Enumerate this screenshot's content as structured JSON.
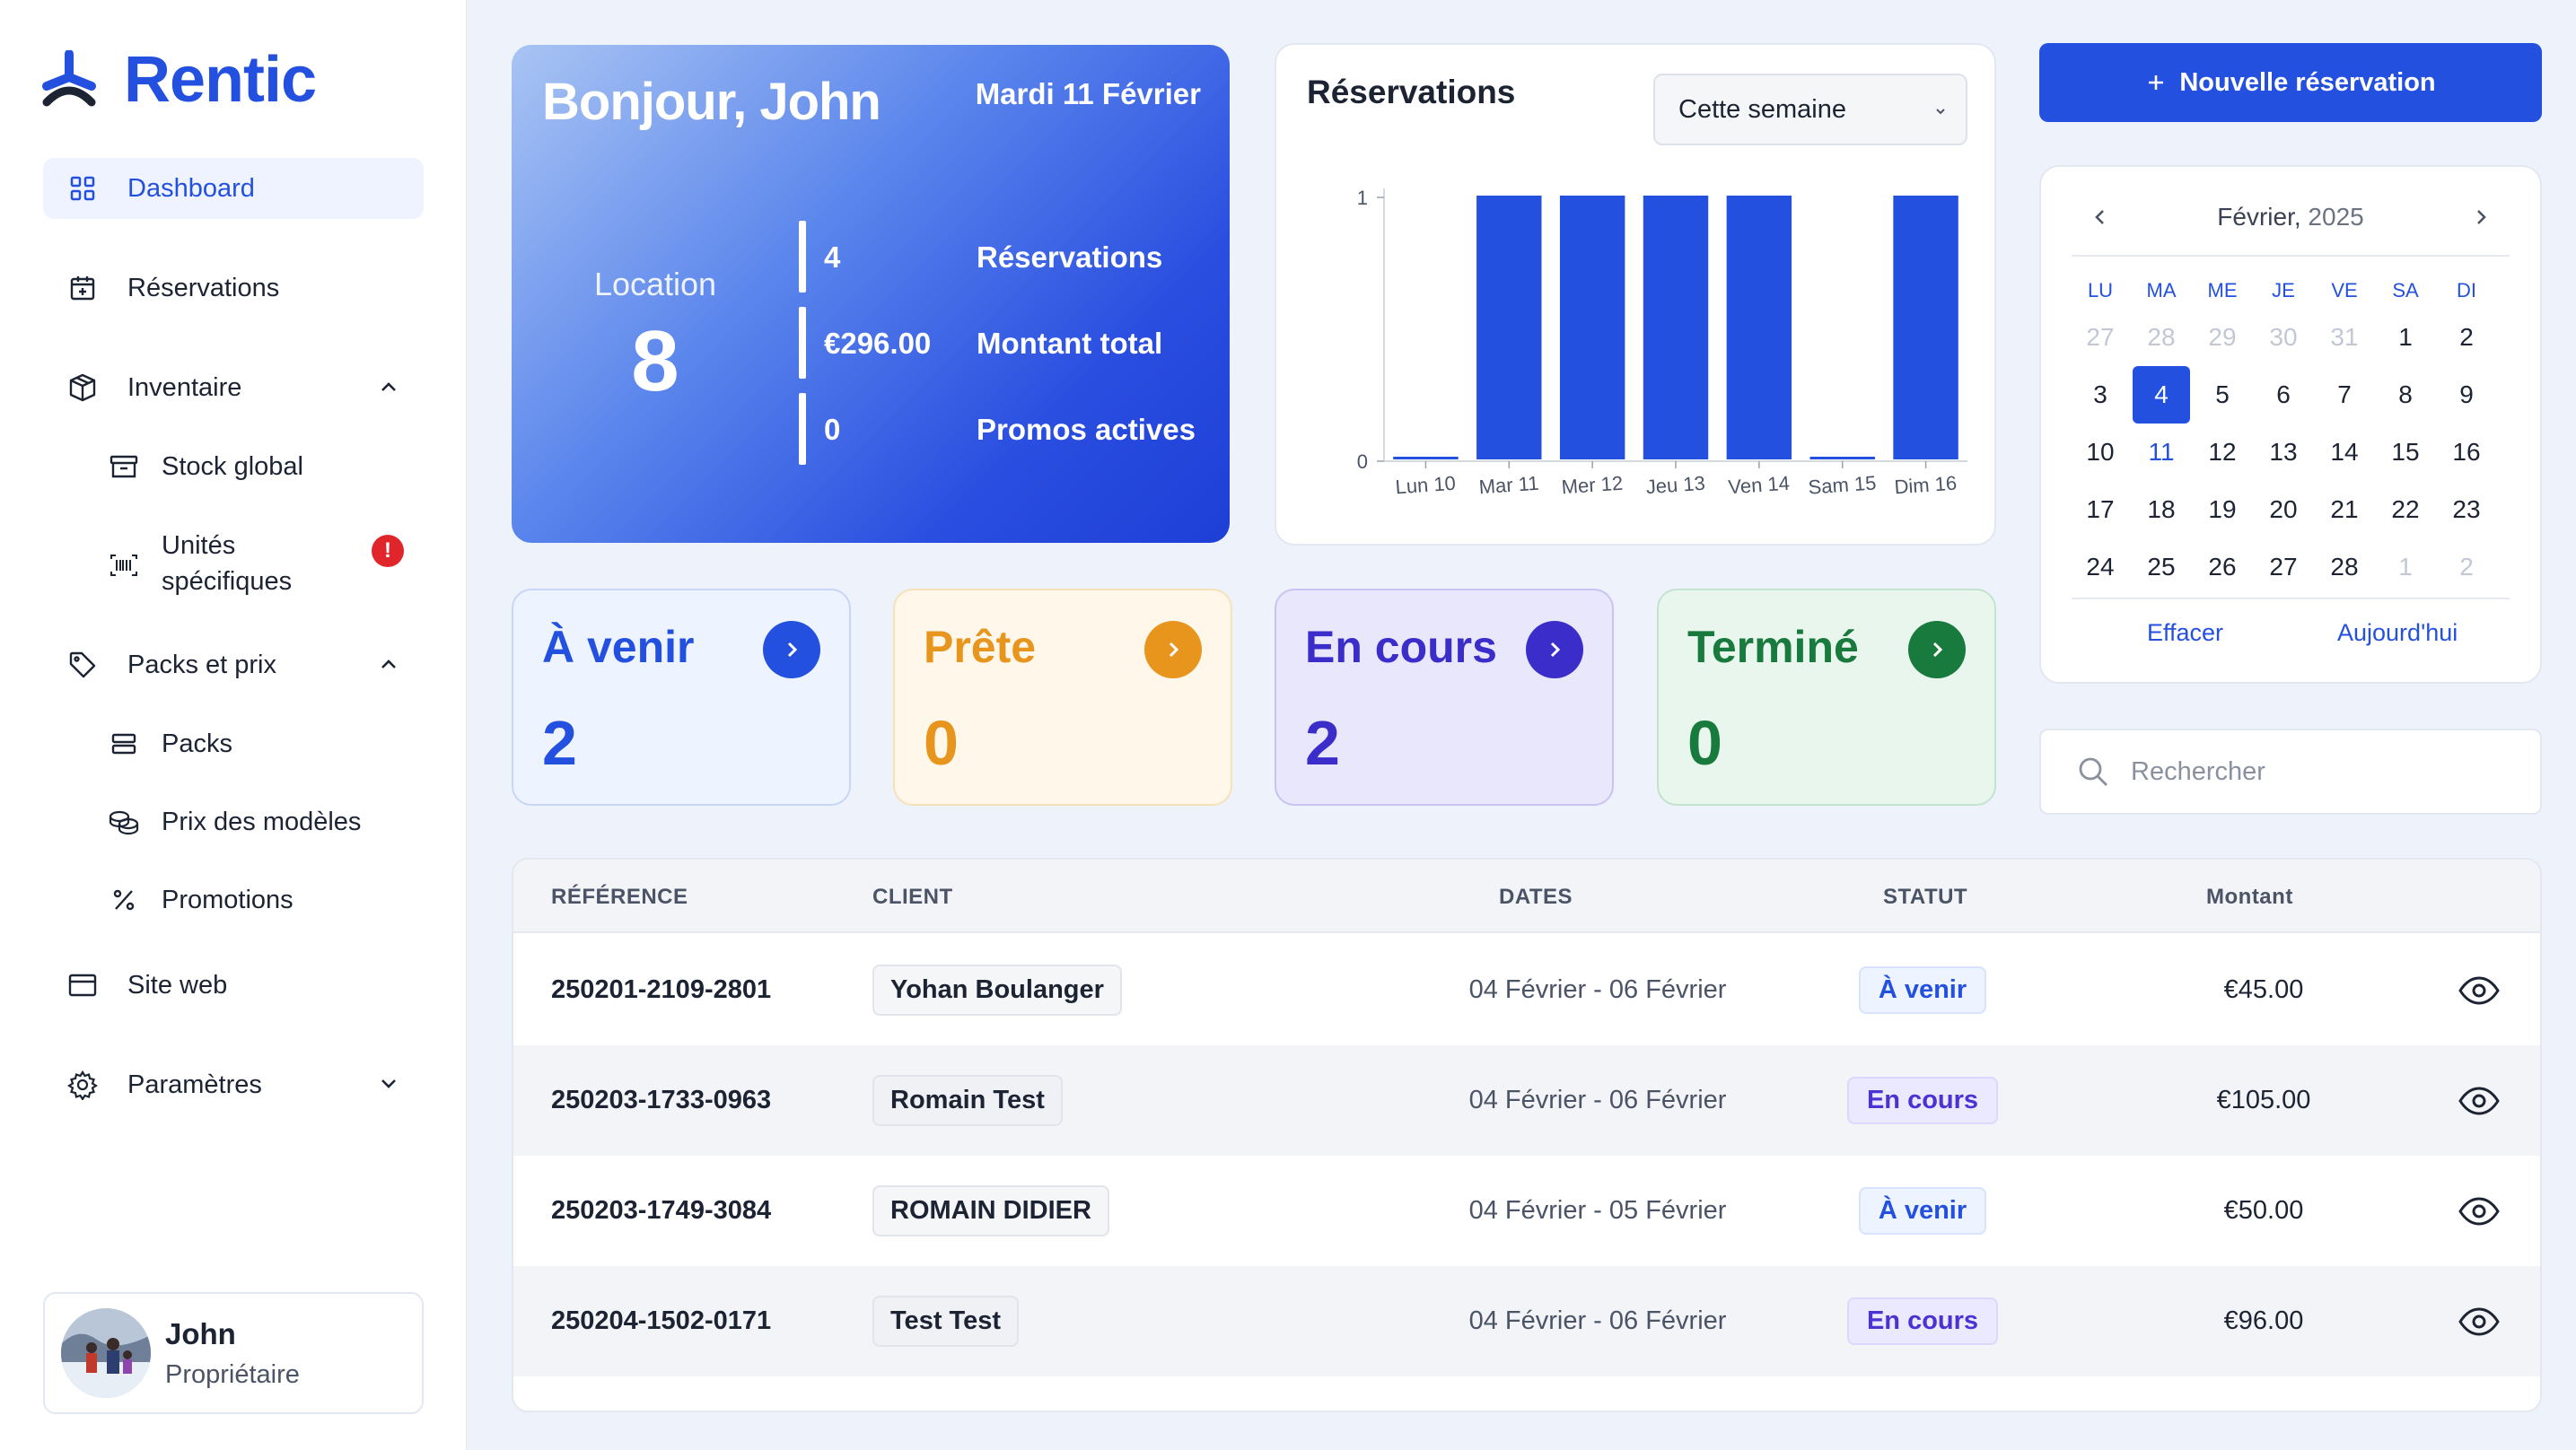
{
  "brand": {
    "name": "Rentic",
    "accent": "#2450e0"
  },
  "sidebar": {
    "items": [
      {
        "label": "Dashboard",
        "icon": "grid-icon",
        "active": true
      },
      {
        "label": "Réservations",
        "icon": "calendar-plus-icon"
      },
      {
        "label": "Inventaire",
        "icon": "box-icon",
        "expanded": true
      },
      {
        "label": "Stock global",
        "icon": "archive-icon"
      },
      {
        "label": "Unités spécifiques",
        "icon": "barcode-icon",
        "alert": "!"
      },
      {
        "label": "Packs et prix",
        "icon": "tag-icon",
        "expanded": true
      },
      {
        "label": "Packs",
        "icon": "stack-icon"
      },
      {
        "label": "Prix des modèles",
        "icon": "coins-icon"
      },
      {
        "label": "Promotions",
        "icon": "percent-icon"
      },
      {
        "label": "Site web",
        "icon": "browser-icon"
      },
      {
        "label": "Paramètres",
        "icon": "gear-icon",
        "expanded": false
      }
    ],
    "user": {
      "name": "John",
      "role": "Propriétaire"
    }
  },
  "hero": {
    "greeting": "Bonjour, John",
    "date": "Mardi 11 Février",
    "location_label": "Location",
    "location_value": "8",
    "rows": [
      {
        "value": "4",
        "label": "Réservations"
      },
      {
        "value": "€296.00",
        "label": "Montant total"
      },
      {
        "value": "0",
        "label": "Promos actives"
      }
    ]
  },
  "chart": {
    "title": "Réservations",
    "period": "Cette semaine"
  },
  "chart_data": {
    "type": "bar",
    "title": "Réservations",
    "categories": [
      "Lun 10",
      "Mar 11",
      "Mer 12",
      "Jeu 13",
      "Ven 14",
      "Sam 15",
      "Dim 16"
    ],
    "values": [
      0,
      1,
      1,
      1,
      1,
      0,
      1
    ],
    "ylim": [
      0,
      1
    ],
    "yticks": [
      "0",
      "1"
    ],
    "color": "#2450e0"
  },
  "actions": {
    "new_reservation": "Nouvelle réservation"
  },
  "calendar": {
    "month": "Février,",
    "year": "2025",
    "dow": [
      "LU",
      "MA",
      "ME",
      "JE",
      "VE",
      "SA",
      "DI"
    ],
    "days": [
      [
        "27",
        "28",
        "29",
        "30",
        "31",
        "1",
        "2"
      ],
      [
        "3",
        "4",
        "5",
        "6",
        "7",
        "8",
        "9"
      ],
      [
        "10",
        "11",
        "12",
        "13",
        "14",
        "15",
        "16"
      ],
      [
        "17",
        "18",
        "19",
        "20",
        "21",
        "22",
        "23"
      ],
      [
        "24",
        "25",
        "26",
        "27",
        "28",
        "1",
        "2"
      ]
    ],
    "selected": "4",
    "today": "11",
    "clear": "Effacer",
    "today_label": "Aujourd'hui"
  },
  "search": {
    "placeholder": "Rechercher"
  },
  "status_cards": [
    {
      "title": "À venir",
      "count": "2",
      "bg": "#eef4ff",
      "border": "#c8d6f5",
      "color": "#2450e0"
    },
    {
      "title": "Prête",
      "count": "0",
      "bg": "#fff7ea",
      "border": "#f6e1b8",
      "color": "#e8951e"
    },
    {
      "title": "En cours",
      "count": "2",
      "bg": "#e9e7fb",
      "border": "#c9c3f2",
      "color": "#3b2dc9"
    },
    {
      "title": "Terminé",
      "count": "0",
      "bg": "#e9f6ee",
      "border": "#c2e3cd",
      "color": "#187a3c"
    }
  ],
  "table": {
    "headers": [
      "RÉFÉRENCE",
      "CLIENT",
      "DATES",
      "STATUT",
      "Montant"
    ],
    "rows": [
      {
        "ref": "250201-2109-2801",
        "client": "Yohan Boulanger",
        "dates": "04 Février - 06 Février",
        "status": "À venir",
        "amount": "€45.00"
      },
      {
        "ref": "250203-1733-0963",
        "client": "Romain Test",
        "dates": "04 Février - 06 Février",
        "status": "En cours",
        "amount": "€105.00"
      },
      {
        "ref": "250203-1749-3084",
        "client": "ROMAIN DIDIER",
        "dates": "04 Février - 05 Février",
        "status": "À venir",
        "amount": "€50.00"
      },
      {
        "ref": "250204-1502-0171",
        "client": "Test Test",
        "dates": "04 Février - 06 Février",
        "status": "En cours",
        "amount": "€96.00"
      }
    ]
  }
}
